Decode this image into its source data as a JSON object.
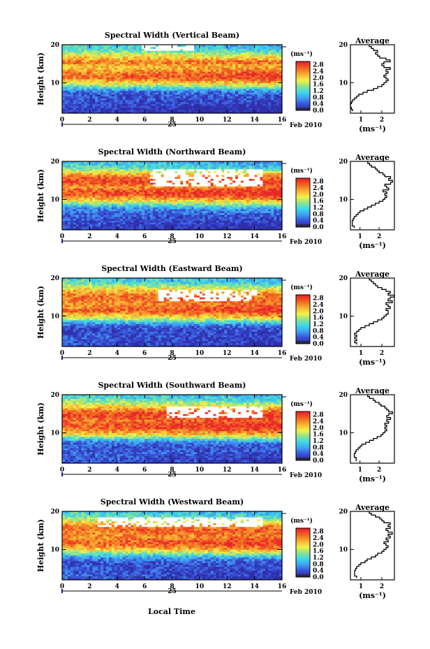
{
  "figure": {
    "date_label": "Feb 2010",
    "day_label": "25",
    "xlabel": "Local Time",
    "average_title": "Average",
    "colorbar_unit": "(ms⁻¹)",
    "average_unit": "(ms⁻¹)"
  },
  "chart_data": [
    {
      "type": "heatmap",
      "title": "Spectral Width (Vertical Beam)",
      "ylabel": "Height (km)",
      "xlim": [
        0,
        16
      ],
      "ylim": [
        2,
        20
      ],
      "xticks": [
        0,
        2,
        4,
        6,
        8,
        10,
        12,
        14,
        16
      ],
      "xtick_labels": [
        "0",
        "2",
        "4",
        "6",
        "8",
        "10",
        "12",
        "14",
        "16"
      ],
      "yticks": [
        10,
        20
      ],
      "ytick_labels": [
        "10",
        "20"
      ],
      "colorbar": {
        "min": 0.0,
        "max": 3.0,
        "ticks": [
          "0.0",
          "0.4",
          "0.8",
          "1.2",
          "1.6",
          "2.0",
          "2.4",
          "2.8"
        ]
      },
      "field_bands": [
        [
          3.0,
          0.2
        ],
        [
          4.5,
          0.3
        ],
        [
          5.5,
          0.35
        ],
        [
          6.5,
          0.3
        ],
        [
          7.5,
          0.4
        ],
        [
          8.5,
          0.9
        ],
        [
          9.5,
          1.6
        ],
        [
          10.5,
          2.1
        ],
        [
          11.5,
          2.6
        ],
        [
          12.5,
          2.5
        ],
        [
          13.5,
          2.2
        ],
        [
          14.5,
          2.1
        ],
        [
          15.5,
          2.6
        ],
        [
          16.5,
          2.2
        ],
        [
          17.5,
          1.8
        ],
        [
          18.5,
          1.4
        ],
        [
          19.5,
          1.2
        ]
      ],
      "gaps": [
        {
          "t0": 5.8,
          "t1": 9.5,
          "h0": 18.5,
          "h1": 19.5
        }
      ],
      "average": {
        "xlim": [
          0.5,
          2.6
        ],
        "xticks": [
          1,
          2
        ],
        "xtick_labels": [
          "1",
          "2"
        ],
        "height": [
          2.5,
          3,
          3.5,
          4,
          4.5,
          5,
          5.5,
          6,
          6.5,
          7,
          7.5,
          8,
          8.5,
          9,
          9.5,
          10,
          10.5,
          11,
          11.5,
          12,
          12.5,
          13,
          13.5,
          14,
          14.5,
          15,
          15.5,
          16,
          16.5,
          17,
          17.5,
          18,
          18.5,
          19,
          19.5
        ],
        "value": [
          0.6,
          0.55,
          0.5,
          0.5,
          0.55,
          0.6,
          0.7,
          0.8,
          0.9,
          1.1,
          1.3,
          1.6,
          1.8,
          2.0,
          2.1,
          2.2,
          2.3,
          2.2,
          2.1,
          2.2,
          2.3,
          2.2,
          2.4,
          2.1,
          2.0,
          2.1,
          2.4,
          2.2,
          1.9,
          1.8,
          1.7,
          1.8,
          1.6,
          1.5,
          1.4
        ]
      }
    },
    {
      "type": "heatmap",
      "title": "Spectral Width (Northward Beam)",
      "ylabel": "Height (km)",
      "xlim": [
        0,
        16
      ],
      "ylim": [
        2,
        20
      ],
      "xticks": [
        0,
        2,
        4,
        6,
        8,
        10,
        12,
        14,
        16
      ],
      "xtick_labels": [
        "0",
        "2",
        "4",
        "6",
        "8",
        "10",
        "12",
        "14",
        "16"
      ],
      "yticks": [
        10,
        20
      ],
      "ytick_labels": [
        "10",
        "20"
      ],
      "colorbar": {
        "min": 0.0,
        "max": 3.0,
        "ticks": [
          "0.0",
          "0.4",
          "0.8",
          "1.2",
          "1.6",
          "2.0",
          "2.4",
          "2.8"
        ]
      },
      "field_bands": [
        [
          3.0,
          0.3
        ],
        [
          4.5,
          0.35
        ],
        [
          5.5,
          0.4
        ],
        [
          6.5,
          0.45
        ],
        [
          7.5,
          0.6
        ],
        [
          8.5,
          1.1
        ],
        [
          9.5,
          1.8
        ],
        [
          10.5,
          2.3
        ],
        [
          11.5,
          2.7
        ],
        [
          12.5,
          2.6
        ],
        [
          13.5,
          2.3
        ],
        [
          14.5,
          2.8
        ],
        [
          15.5,
          2.7
        ],
        [
          16.5,
          2.4
        ],
        [
          17.5,
          1.7
        ],
        [
          18.5,
          1.3
        ],
        [
          19.5,
          1.1
        ]
      ],
      "gaps": [
        {
          "t0": 6.3,
          "t1": 14.5,
          "h0": 13.5,
          "h1": 17.5
        }
      ],
      "average": {
        "xlim": [
          0.5,
          2.8
        ],
        "xticks": [
          1,
          2
        ],
        "xtick_labels": [
          "1",
          "2"
        ],
        "height": [
          2.5,
          3,
          3.5,
          4,
          4.5,
          5,
          5.5,
          6,
          6.5,
          7,
          7.5,
          8,
          8.5,
          9,
          9.5,
          10,
          10.5,
          11,
          11.5,
          12,
          12.5,
          13,
          13.5,
          14,
          14.5,
          15,
          15.5,
          16,
          16.5,
          17,
          17.5,
          18,
          18.5,
          19,
          19.5
        ],
        "value": [
          0.7,
          0.6,
          0.6,
          0.6,
          0.65,
          0.7,
          0.8,
          0.9,
          1.0,
          1.2,
          1.4,
          1.6,
          1.8,
          2.0,
          2.2,
          2.3,
          2.4,
          2.3,
          2.4,
          2.2,
          2.5,
          2.4,
          2.3,
          2.6,
          2.7,
          2.5,
          2.6,
          2.3,
          2.2,
          2.0,
          1.9,
          1.8,
          1.6,
          1.5,
          1.4
        ]
      }
    },
    {
      "type": "heatmap",
      "title": "Spectral Width (Eastward Beam)",
      "ylabel": "Height (km)",
      "xlim": [
        0,
        16
      ],
      "ylim": [
        2,
        20
      ],
      "xticks": [
        0,
        2,
        4,
        6,
        8,
        10,
        12,
        14,
        16
      ],
      "xtick_labels": [
        "0",
        "2",
        "4",
        "6",
        "8",
        "10",
        "12",
        "14",
        "16"
      ],
      "yticks": [
        10,
        20
      ],
      "ytick_labels": [
        "10",
        "20"
      ],
      "colorbar": {
        "min": 0.0,
        "max": 3.0,
        "ticks": [
          "0.0",
          "0.4",
          "0.8",
          "1.2",
          "1.6",
          "2.0",
          "2.4",
          "2.8"
        ]
      },
      "field_bands": [
        [
          3.0,
          0.35
        ],
        [
          4.5,
          0.4
        ],
        [
          5.5,
          0.3
        ],
        [
          6.5,
          0.25
        ],
        [
          7.5,
          0.4
        ],
        [
          8.5,
          1.0
        ],
        [
          9.5,
          1.7
        ],
        [
          10.5,
          2.2
        ],
        [
          11.5,
          2.6
        ],
        [
          12.5,
          2.4
        ],
        [
          13.5,
          2.3
        ],
        [
          14.5,
          2.6
        ],
        [
          15.5,
          2.5
        ],
        [
          16.5,
          2.3
        ],
        [
          17.5,
          1.9
        ],
        [
          18.5,
          1.4
        ],
        [
          19.5,
          1.2
        ]
      ],
      "gaps": [
        {
          "t0": 7.0,
          "t1": 14.0,
          "h0": 14.0,
          "h1": 16.5
        }
      ],
      "average": {
        "xlim": [
          0.5,
          2.6
        ],
        "xticks": [
          1,
          2
        ],
        "xtick_labels": [
          "1",
          "2"
        ],
        "height": [
          2.5,
          3,
          3.5,
          4,
          4.5,
          5,
          5.5,
          6,
          6.5,
          7,
          7.5,
          8,
          8.5,
          9,
          9.5,
          10,
          10.5,
          11,
          11.5,
          12,
          12.5,
          13,
          13.5,
          14,
          14.5,
          15,
          15.5,
          16,
          16.5,
          17,
          17.5,
          18,
          18.5,
          19,
          19.5
        ],
        "value": [
          0.8,
          0.7,
          0.8,
          0.7,
          0.8,
          0.7,
          0.8,
          0.9,
          1.0,
          1.2,
          1.4,
          1.6,
          1.8,
          2.0,
          2.1,
          2.2,
          2.3,
          2.3,
          2.2,
          2.4,
          2.3,
          2.2,
          2.5,
          2.3,
          2.4,
          2.6,
          2.3,
          2.4,
          2.2,
          2.0,
          1.8,
          1.7,
          1.6,
          1.5,
          1.4
        ]
      }
    },
    {
      "type": "heatmap",
      "title": "Spectral Width (Southward Beam)",
      "ylabel": "Height (km)",
      "xlim": [
        0,
        16
      ],
      "ylim": [
        2,
        20
      ],
      "xticks": [
        0,
        2,
        4,
        6,
        8,
        10,
        12,
        14,
        16
      ],
      "xtick_labels": [
        "0",
        "2",
        "4",
        "6",
        "8",
        "10",
        "12",
        "14",
        "16"
      ],
      "yticks": [
        10,
        20
      ],
      "ytick_labels": [
        "10",
        "20"
      ],
      "colorbar": {
        "min": 0.0,
        "max": 3.0,
        "ticks": [
          "0.0",
          "0.4",
          "0.8",
          "1.2",
          "1.6",
          "2.0",
          "2.4",
          "2.8"
        ]
      },
      "field_bands": [
        [
          3.0,
          0.4
        ],
        [
          4.5,
          0.45
        ],
        [
          5.5,
          0.4
        ],
        [
          6.5,
          0.35
        ],
        [
          7.5,
          0.5
        ],
        [
          8.5,
          1.1
        ],
        [
          9.5,
          1.9
        ],
        [
          10.5,
          2.3
        ],
        [
          11.5,
          2.7
        ],
        [
          12.5,
          2.6
        ],
        [
          13.5,
          2.5
        ],
        [
          14.5,
          2.8
        ],
        [
          15.5,
          2.7
        ],
        [
          16.5,
          2.3
        ],
        [
          17.5,
          1.8
        ],
        [
          18.5,
          1.5
        ],
        [
          19.5,
          1.2
        ]
      ],
      "gaps": [
        {
          "t0": 7.5,
          "t1": 14.5,
          "h0": 14.0,
          "h1": 16.5
        }
      ],
      "average": {
        "xlim": [
          0.5,
          2.8
        ],
        "xticks": [
          1,
          2
        ],
        "xtick_labels": [
          "1",
          "2"
        ],
        "height": [
          2.5,
          3,
          3.5,
          4,
          4.5,
          5,
          5.5,
          6,
          6.5,
          7,
          7.5,
          8,
          8.5,
          9,
          9.5,
          10,
          10.5,
          11,
          11.5,
          12,
          12.5,
          13,
          13.5,
          14,
          14.5,
          15,
          15.5,
          16,
          16.5,
          17,
          17.5,
          18,
          18.5,
          19,
          19.5
        ],
        "value": [
          0.8,
          0.8,
          0.7,
          0.7,
          0.75,
          0.8,
          0.9,
          1.0,
          1.1,
          1.3,
          1.5,
          1.7,
          1.9,
          2.1,
          2.2,
          2.3,
          2.4,
          2.3,
          2.4,
          2.3,
          2.5,
          2.4,
          2.6,
          2.4,
          2.5,
          2.7,
          2.5,
          2.4,
          2.3,
          2.1,
          2.0,
          1.8,
          1.7,
          1.5,
          1.4
        ]
      }
    },
    {
      "type": "heatmap",
      "title": "Spectral Width (Westward Beam)",
      "ylabel": "Height (km)",
      "xlim": [
        0,
        16
      ],
      "ylim": [
        2,
        20
      ],
      "xticks": [
        0,
        2,
        4,
        6,
        8,
        10,
        12,
        14,
        16
      ],
      "xtick_labels": [
        "0",
        "2",
        "4",
        "6",
        "8",
        "10",
        "12",
        "14",
        "16"
      ],
      "yticks": [
        10,
        20
      ],
      "ytick_labels": [
        "10",
        "20"
      ],
      "colorbar": {
        "min": 0.0,
        "max": 3.0,
        "ticks": [
          "0.0",
          "0.4",
          "0.8",
          "1.2",
          "1.6",
          "2.0",
          "2.4",
          "2.8"
        ]
      },
      "field_bands": [
        [
          3.0,
          0.4
        ],
        [
          4.5,
          0.4
        ],
        [
          5.5,
          0.35
        ],
        [
          6.5,
          0.3
        ],
        [
          7.5,
          0.5
        ],
        [
          8.5,
          1.0
        ],
        [
          9.5,
          1.7
        ],
        [
          10.5,
          2.2
        ],
        [
          11.5,
          2.6
        ],
        [
          12.5,
          2.5
        ],
        [
          13.5,
          2.3
        ],
        [
          14.5,
          2.5
        ],
        [
          15.5,
          2.6
        ],
        [
          16.5,
          2.4
        ],
        [
          17.5,
          1.9
        ],
        [
          18.5,
          1.5
        ],
        [
          19.5,
          1.2
        ]
      ],
      "gaps": [
        {
          "t0": 2.5,
          "t1": 14.5,
          "h0": 16.0,
          "h1": 18.0
        }
      ],
      "average": {
        "xlim": [
          0.5,
          2.6
        ],
        "xticks": [
          1,
          2
        ],
        "xtick_labels": [
          "1",
          "2"
        ],
        "height": [
          2.5,
          3,
          3.5,
          4,
          4.5,
          5,
          5.5,
          6,
          6.5,
          7,
          7.5,
          8,
          8.5,
          9,
          9.5,
          10,
          10.5,
          11,
          11.5,
          12,
          12.5,
          13,
          13.5,
          14,
          14.5,
          15,
          15.5,
          16,
          16.5,
          17,
          17.5,
          18,
          18.5,
          19,
          19.5
        ],
        "value": [
          0.8,
          0.7,
          0.7,
          0.7,
          0.75,
          0.8,
          0.9,
          1.0,
          1.2,
          1.3,
          1.5,
          1.7,
          1.8,
          2.0,
          2.1,
          2.2,
          2.3,
          2.2,
          2.1,
          2.3,
          2.2,
          2.4,
          2.3,
          2.5,
          2.3,
          2.2,
          2.4,
          2.3,
          2.4,
          2.1,
          2.0,
          1.9,
          1.7,
          1.5,
          1.4
        ]
      }
    }
  ]
}
